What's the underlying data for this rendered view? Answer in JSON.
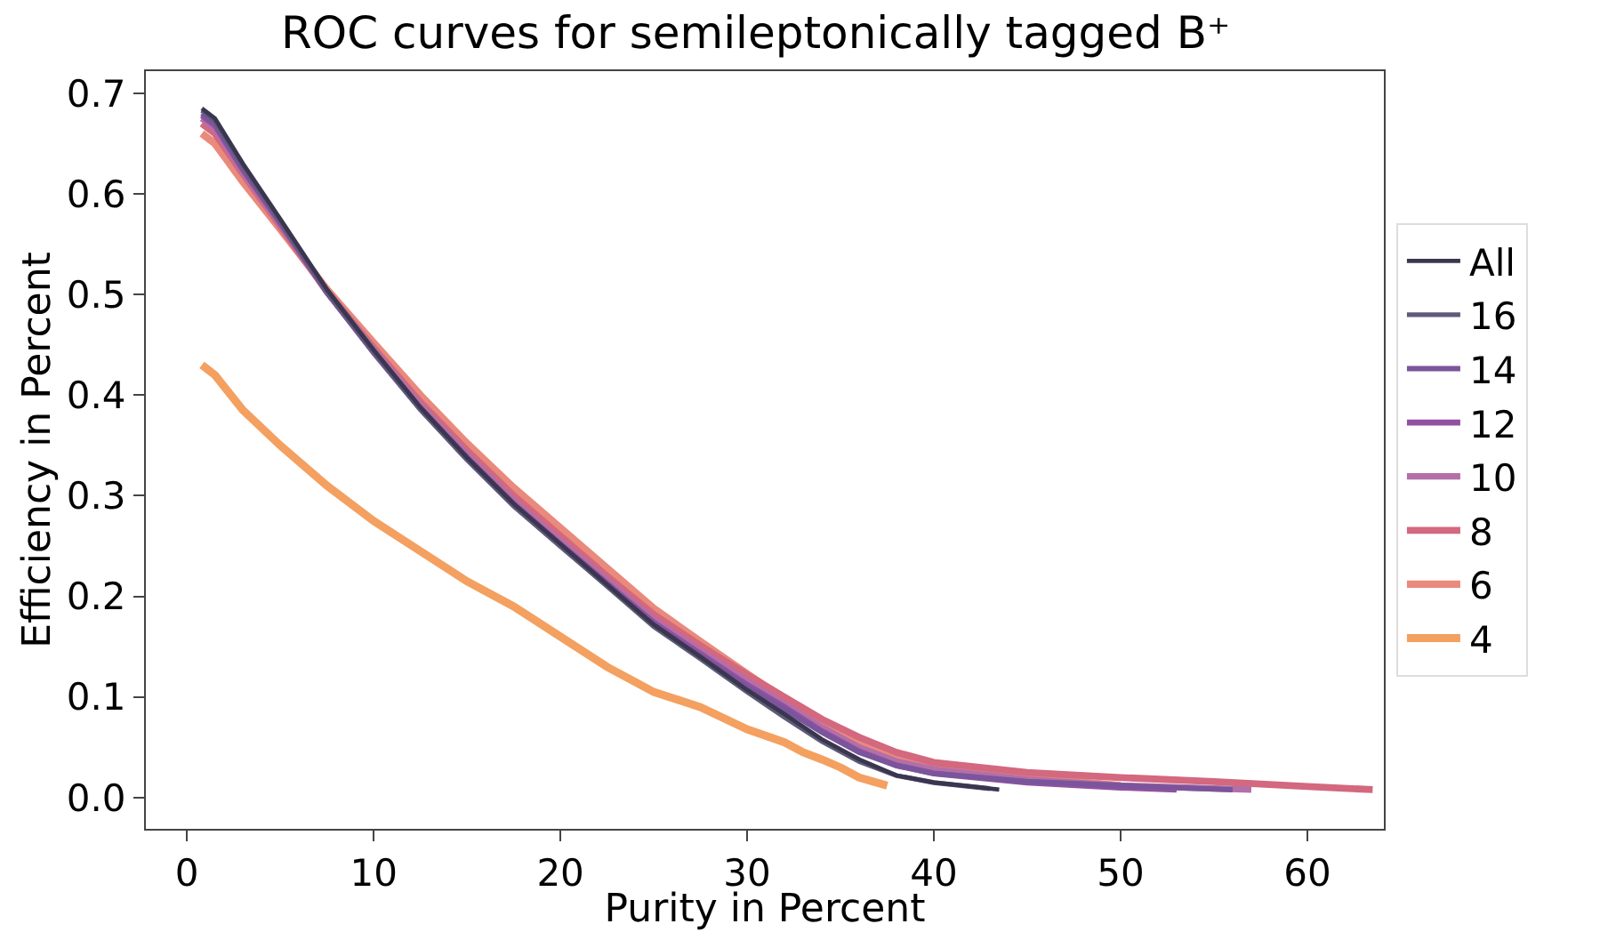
{
  "chart_data": {
    "type": "line",
    "title": "ROC curves for semileptonically tagged B⁺",
    "xlabel": "Purity in Percent",
    "ylabel": "Efficiency in Percent",
    "xlim": [
      -2.2,
      64.1
    ],
    "ylim": [
      -0.031,
      0.722
    ],
    "xticks": [
      0,
      10,
      20,
      30,
      40,
      50,
      60
    ],
    "yticks": [
      {
        "value": 0,
        "label": "0.0"
      },
      0.1,
      0.2,
      0.3,
      0.4,
      0.5,
      0.6,
      0.7
    ],
    "grid": false,
    "legend": "right",
    "marker": "none",
    "line_style": "solid",
    "series": [
      {
        "name": "All",
        "color": "#3a3650",
        "x": [
          0.8,
          1.5,
          3,
          5,
          7.5,
          10,
          12.5,
          15,
          17.5,
          20,
          22.5,
          25,
          27.5,
          30,
          32,
          34,
          36,
          38,
          40,
          42,
          43.5
        ],
        "values": [
          0.685,
          0.675,
          0.63,
          0.575,
          0.505,
          0.445,
          0.388,
          0.338,
          0.292,
          0.252,
          0.212,
          0.172,
          0.14,
          0.107,
          0.083,
          0.058,
          0.038,
          0.022,
          0.015,
          0.011,
          0.008
        ]
      },
      {
        "name": "16",
        "color": "#5e5b78",
        "x": [
          0.8,
          1.5,
          3,
          5,
          7.5,
          10,
          12.5,
          15,
          17.5,
          20,
          22.5,
          25,
          27.5,
          30,
          32,
          34,
          36,
          38,
          40,
          42,
          43
        ],
        "values": [
          0.683,
          0.673,
          0.628,
          0.573,
          0.503,
          0.443,
          0.386,
          0.336,
          0.29,
          0.25,
          0.21,
          0.17,
          0.138,
          0.105,
          0.08,
          0.056,
          0.036,
          0.022,
          0.015,
          0.011,
          0.009
        ]
      },
      {
        "name": "14",
        "color": "#7b559b",
        "x": [
          0.8,
          1.5,
          3,
          5,
          7.5,
          10,
          12.5,
          15,
          17.5,
          20,
          22.5,
          25,
          27.5,
          30,
          32,
          34,
          36,
          38,
          40,
          45,
          50,
          56
        ],
        "values": [
          0.68,
          0.67,
          0.625,
          0.572,
          0.502,
          0.442,
          0.386,
          0.336,
          0.29,
          0.25,
          0.211,
          0.172,
          0.141,
          0.11,
          0.088,
          0.065,
          0.045,
          0.032,
          0.024,
          0.016,
          0.012,
          0.008
        ]
      },
      {
        "name": "12",
        "color": "#9151a1",
        "x": [
          0.8,
          1.5,
          3,
          5,
          7.5,
          10,
          12.5,
          15,
          17.5,
          20,
          22.5,
          25,
          27.5,
          30,
          32,
          34,
          36,
          38,
          40,
          45,
          50,
          53
        ],
        "values": [
          0.678,
          0.668,
          0.624,
          0.571,
          0.502,
          0.443,
          0.387,
          0.338,
          0.292,
          0.252,
          0.213,
          0.174,
          0.143,
          0.112,
          0.09,
          0.066,
          0.046,
          0.032,
          0.024,
          0.015,
          0.01,
          0.008
        ]
      },
      {
        "name": "10",
        "color": "#b46fa8",
        "x": [
          0.8,
          1.5,
          3,
          5,
          7.5,
          10,
          12.5,
          15,
          17.5,
          20,
          22.5,
          25,
          27.5,
          30,
          32,
          34,
          36,
          38,
          40,
          45,
          50,
          57
        ],
        "values": [
          0.675,
          0.665,
          0.622,
          0.57,
          0.503,
          0.445,
          0.39,
          0.341,
          0.295,
          0.255,
          0.216,
          0.177,
          0.146,
          0.116,
          0.093,
          0.07,
          0.05,
          0.036,
          0.028,
          0.018,
          0.012,
          0.008
        ]
      },
      {
        "name": "8",
        "color": "#d3687e",
        "x": [
          0.8,
          1.5,
          3,
          5,
          7.5,
          10,
          12.5,
          15,
          17.5,
          20,
          22.5,
          25,
          27.5,
          30,
          32,
          34,
          36,
          38,
          40,
          45,
          50,
          55,
          60,
          63.5
        ],
        "values": [
          0.67,
          0.66,
          0.62,
          0.568,
          0.503,
          0.447,
          0.393,
          0.345,
          0.3,
          0.26,
          0.22,
          0.182,
          0.151,
          0.122,
          0.1,
          0.078,
          0.06,
          0.045,
          0.035,
          0.025,
          0.02,
          0.016,
          0.011,
          0.008
        ]
      },
      {
        "name": "6",
        "color": "#e98a7c",
        "x": [
          0.8,
          1.5,
          3,
          5,
          7.5,
          10,
          12.5,
          15,
          17.5,
          20,
          22.5,
          25,
          27.5,
          30,
          32,
          34,
          36,
          38,
          40,
          45,
          50
        ],
        "values": [
          0.66,
          0.65,
          0.612,
          0.565,
          0.505,
          0.452,
          0.4,
          0.352,
          0.308,
          0.268,
          0.228,
          0.188,
          0.155,
          0.123,
          0.098,
          0.074,
          0.056,
          0.042,
          0.033,
          0.02,
          0.012
        ]
      },
      {
        "name": "4",
        "color": "#f4a060",
        "x": [
          0.8,
          1.5,
          3,
          5,
          7.5,
          10,
          12.5,
          15,
          17.5,
          20,
          22.5,
          25,
          27.5,
          30,
          32,
          33,
          34,
          35,
          36,
          37.5
        ],
        "values": [
          0.43,
          0.42,
          0.385,
          0.35,
          0.31,
          0.275,
          0.245,
          0.215,
          0.19,
          0.16,
          0.13,
          0.105,
          0.09,
          0.068,
          0.055,
          0.045,
          0.038,
          0.03,
          0.02,
          0.012
        ]
      }
    ]
  }
}
